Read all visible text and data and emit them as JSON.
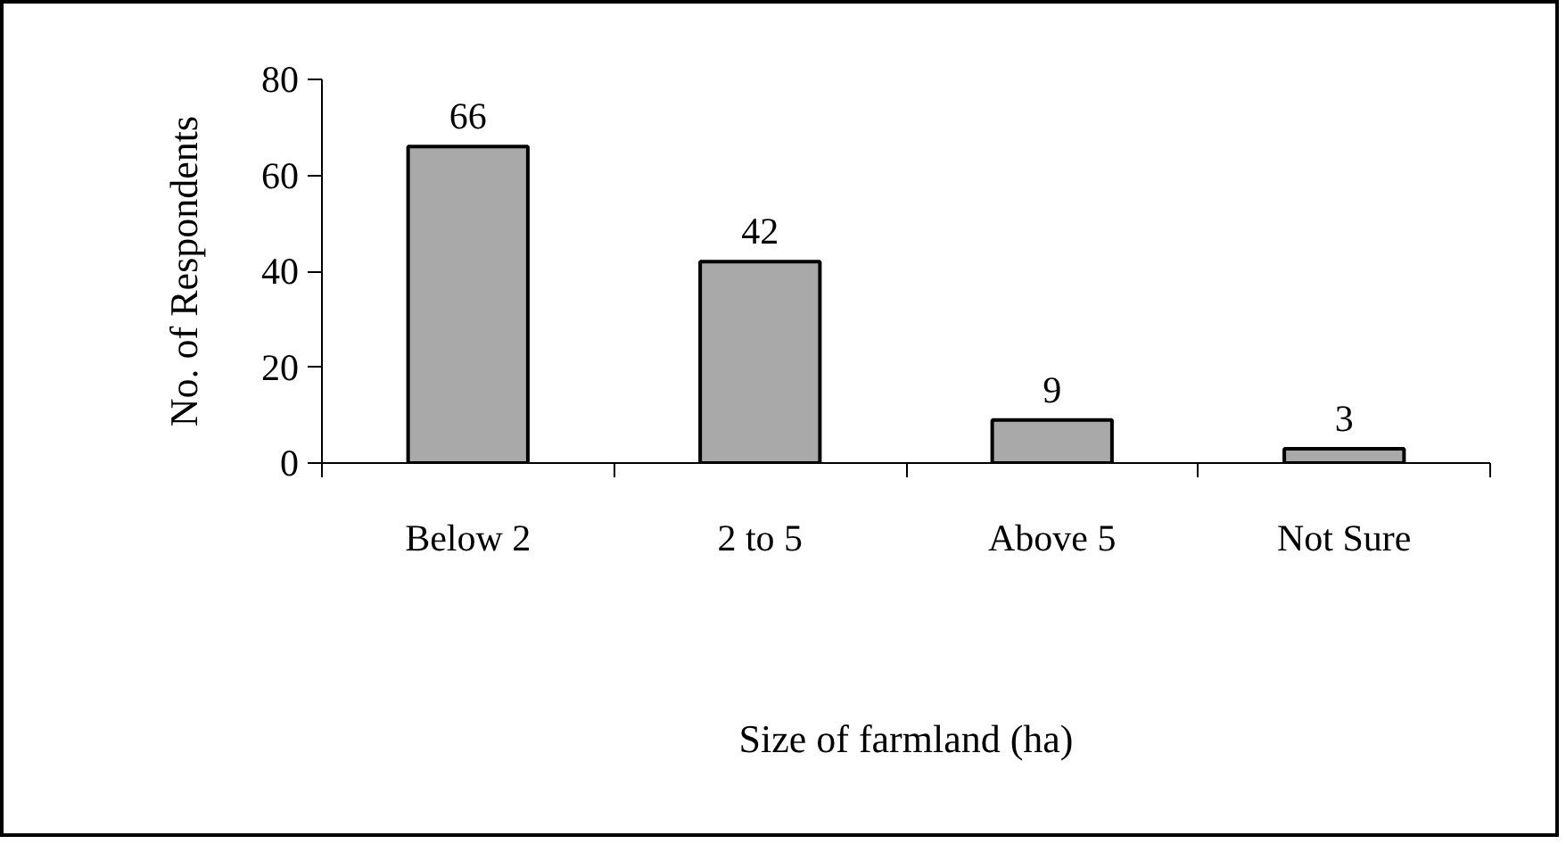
{
  "chart_data": {
    "type": "bar",
    "xlabel": "Size of farmland (ha)",
    "ylabel": "No. of Respondents",
    "categories": [
      "Below 2",
      "2 to 5",
      "Above 5",
      "Not Sure"
    ],
    "values": [
      66,
      42,
      9,
      3
    ],
    "color": "#a9a9a9",
    "data_labels": true,
    "ylim": [
      0,
      80
    ],
    "yticks": [
      0,
      20,
      40,
      60,
      80
    ]
  }
}
